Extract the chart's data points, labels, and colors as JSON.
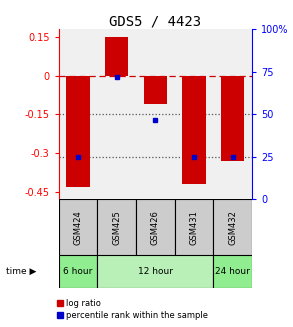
{
  "title": "GDS5 / 4423",
  "samples": [
    "GSM424",
    "GSM425",
    "GSM426",
    "GSM431",
    "GSM432"
  ],
  "log_ratio": [
    -0.43,
    0.15,
    -0.11,
    -0.42,
    -0.33
  ],
  "percentile_rank": [
    25,
    72,
    47,
    25,
    25
  ],
  "time_groups": [
    {
      "label": "6 hour",
      "start": 0,
      "end": 1,
      "color": "#90EE90"
    },
    {
      "label": "12 hour",
      "start": 1,
      "end": 4,
      "color": "#b8f0b8"
    },
    {
      "label": "24 hour",
      "start": 4,
      "end": 5,
      "color": "#90EE90"
    }
  ],
  "ylim_left": [
    -0.48,
    0.18
  ],
  "ylim_right": [
    0,
    100
  ],
  "left_ticks": [
    0.15,
    0,
    -0.15,
    -0.3,
    -0.45
  ],
  "right_ticks": [
    100,
    75,
    50,
    25,
    0
  ],
  "bar_color": "#cc0000",
  "dot_color": "#0000cc",
  "bar_width": 0.6,
  "hline_zero_color": "#cc0000",
  "hline_dotted_color": "#555555",
  "background_color": "#ffffff",
  "plot_bg_color": "#f0f0f0",
  "sample_bg_color": "#cccccc",
  "legend_items": [
    "log ratio",
    "percentile rank within the sample"
  ]
}
